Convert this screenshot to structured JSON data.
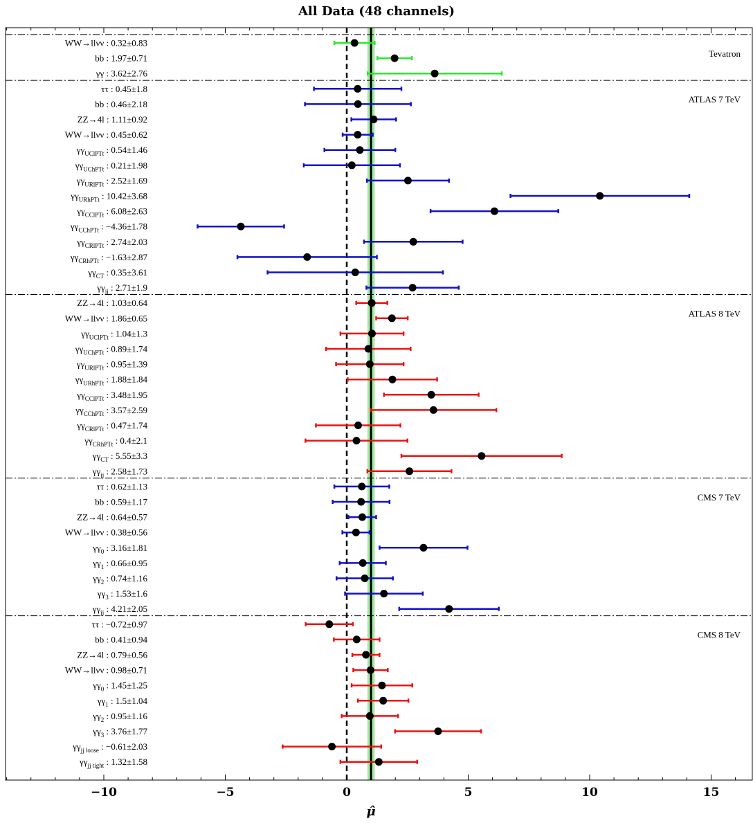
{
  "chart_data": {
    "type": "scatter",
    "title": "All Data (48 channels)",
    "xlabel": "μ̂",
    "xlim": [
      -14,
      16.5
    ],
    "xticks": [
      -10,
      -5,
      0,
      5,
      10,
      15
    ],
    "tick_labels": [
      "−10",
      "−5",
      "0",
      "5",
      "10",
      "15"
    ],
    "reference_lines": {
      "zero": 0,
      "combined": 1.0,
      "combined_band": [
        0.85,
        1.15
      ]
    },
    "colors": {
      "tevatron": "#22ee22",
      "seven_tev": "#1111cc",
      "eight_tev": "#ee1111",
      "band": "#a6e8a6"
    },
    "groups": [
      {
        "name": "Tevatron",
        "color": "#22ee22",
        "channels": [
          {
            "label": "WW→llνν : 0.32±0.83",
            "base": "WW→llνν",
            "sub": "",
            "rest": " : 0.32±0.83",
            "value": 0.32,
            "error": 0.83
          },
          {
            "label": "bb : 1.97±0.71",
            "base": "bb",
            "sub": "",
            "rest": " : 1.97±0.71",
            "value": 1.97,
            "error": 0.71
          },
          {
            "label": "γγ : 3.62±2.76",
            "base": "γγ",
            "sub": "",
            "rest": " : 3.62±2.76",
            "value": 3.62,
            "error": 2.76
          }
        ]
      },
      {
        "name": "ATLAS 7 TeV",
        "color": "#1111cc",
        "channels": [
          {
            "label": "ττ : 0.45±1.8",
            "base": "ττ",
            "sub": "",
            "rest": " : 0.45±1.8",
            "value": 0.45,
            "error": 1.8
          },
          {
            "label": "bb : 0.46±2.18",
            "base": "bb",
            "sub": "",
            "rest": " : 0.46±2.18",
            "value": 0.46,
            "error": 2.18
          },
          {
            "label": "ZZ→4l : 1.11±0.92",
            "base": "ZZ→4l",
            "sub": "",
            "rest": " : 1.11±0.92",
            "value": 1.11,
            "error": 0.92
          },
          {
            "label": "WW→llνν : 0.45±0.62",
            "base": "WW→llνν",
            "sub": "",
            "rest": " : 0.45±0.62",
            "value": 0.45,
            "error": 0.62
          },
          {
            "label": "γγUClPTt : 0.54±1.46",
            "base": "γγ",
            "sub": "UClPTt",
            "rest": " : 0.54±1.46",
            "value": 0.54,
            "error": 1.46
          },
          {
            "label": "γγUChPTt : 0.21±1.98",
            "base": "γγ",
            "sub": "UChPTt",
            "rest": " : 0.21±1.98",
            "value": 0.21,
            "error": 1.98
          },
          {
            "label": "γγURlPTt : 2.52±1.69",
            "base": "γγ",
            "sub": "URlPTt",
            "rest": " : 2.52±1.69",
            "value": 2.52,
            "error": 1.69
          },
          {
            "label": "γγURhPTt : 10.42±3.68",
            "base": "γγ",
            "sub": "URhPTt",
            "rest": " : 10.42±3.68",
            "value": 10.42,
            "error": 3.68
          },
          {
            "label": "γγCClPTt : 6.08±2.63",
            "base": "γγ",
            "sub": "CClPTt",
            "rest": " : 6.08±2.63",
            "value": 6.08,
            "error": 2.63
          },
          {
            "label": "γγCChPTt : −4.36±1.78",
            "base": "γγ",
            "sub": "CChPTt",
            "rest": " : −4.36±1.78",
            "value": -4.36,
            "error": 1.78
          },
          {
            "label": "γγCRlPTt : 2.74±2.03",
            "base": "γγ",
            "sub": "CRlPTt",
            "rest": " : 2.74±2.03",
            "value": 2.74,
            "error": 2.03
          },
          {
            "label": "γγCRhPTt : −1.63±2.87",
            "base": "γγ",
            "sub": "CRhPTt",
            "rest": " : −1.63±2.87",
            "value": -1.63,
            "error": 2.87
          },
          {
            "label": "γγCT : 0.35±3.61",
            "base": "γγ",
            "sub": "CT",
            "rest": " : 0.35±3.61",
            "value": 0.35,
            "error": 3.61
          },
          {
            "label": "γγjj : 2.71±1.9",
            "base": "γγ",
            "sub": "jj",
            "rest": " : 2.71±1.9",
            "value": 2.71,
            "error": 1.9
          }
        ]
      },
      {
        "name": "ATLAS 8 TeV",
        "color": "#ee1111",
        "channels": [
          {
            "label": "ZZ→4l : 1.03±0.64",
            "base": "ZZ→4l",
            "sub": "",
            "rest": " : 1.03±0.64",
            "value": 1.03,
            "error": 0.64
          },
          {
            "label": "WW→llνν : 1.86±0.65",
            "base": "WW→llνν",
            "sub": "",
            "rest": " : 1.86±0.65",
            "value": 1.86,
            "error": 0.65
          },
          {
            "label": "γγUClPTt : 1.04±1.3",
            "base": "γγ",
            "sub": "UClPTt",
            "rest": " : 1.04±1.3",
            "value": 1.04,
            "error": 1.3
          },
          {
            "label": "γγUChPTt : 0.89±1.74",
            "base": "γγ",
            "sub": "UChPTt",
            "rest": " : 0.89±1.74",
            "value": 0.89,
            "error": 1.74
          },
          {
            "label": "γγURlPTt : 0.95±1.39",
            "base": "γγ",
            "sub": "URlPTt",
            "rest": " : 0.95±1.39",
            "value": 0.95,
            "error": 1.39
          },
          {
            "label": "γγURhPTt : 1.88±1.84",
            "base": "γγ",
            "sub": "URhPTt",
            "rest": " : 1.88±1.84",
            "value": 1.88,
            "error": 1.84
          },
          {
            "label": "γγCClPTt : 3.48±1.95",
            "base": "γγ",
            "sub": "CClPTt",
            "rest": " : 3.48±1.95",
            "value": 3.48,
            "error": 1.95
          },
          {
            "label": "γγCChPTt : 3.57±2.59",
            "base": "γγ",
            "sub": "CChPTt",
            "rest": " : 3.57±2.59",
            "value": 3.57,
            "error": 2.59
          },
          {
            "label": "γγCRlPTt : 0.47±1.74",
            "base": "γγ",
            "sub": "CRlPTt",
            "rest": " : 0.47±1.74",
            "value": 0.47,
            "error": 1.74
          },
          {
            "label": "γγCRhPTt : 0.4±2.1",
            "base": "γγ",
            "sub": "CRhPTt",
            "rest": " : 0.4±2.1",
            "value": 0.4,
            "error": 2.1
          },
          {
            "label": "γγCT : 5.55±3.3",
            "base": "γγ",
            "sub": "CT",
            "rest": " : 5.55±3.3",
            "value": 5.55,
            "error": 3.3
          },
          {
            "label": "γγjj : 2.58±1.73",
            "base": "γγ",
            "sub": "jj",
            "rest": " : 2.58±1.73",
            "value": 2.58,
            "error": 1.73
          }
        ]
      },
      {
        "name": "CMS 7 TeV",
        "color": "#1111cc",
        "channels": [
          {
            "label": "ττ : 0.62±1.13",
            "base": "ττ",
            "sub": "",
            "rest": " : 0.62±1.13",
            "value": 0.62,
            "error": 1.13
          },
          {
            "label": "bb : 0.59±1.17",
            "base": "bb",
            "sub": "",
            "rest": " : 0.59±1.17",
            "value": 0.59,
            "error": 1.17
          },
          {
            "label": "ZZ→4l : 0.64±0.57",
            "base": "ZZ→4l",
            "sub": "",
            "rest": " : 0.64±0.57",
            "value": 0.64,
            "error": 0.57
          },
          {
            "label": "WW→llνν : 0.38±0.56",
            "base": "WW→llνν",
            "sub": "",
            "rest": " : 0.38±0.56",
            "value": 0.38,
            "error": 0.56
          },
          {
            "label": "γγ0 : 3.16±1.81",
            "base": "γγ",
            "sub": "0",
            "rest": " : 3.16±1.81",
            "value": 3.16,
            "error": 1.81
          },
          {
            "label": "γγ1 : 0.66±0.95",
            "base": "γγ",
            "sub": "1",
            "rest": " : 0.66±0.95",
            "value": 0.66,
            "error": 0.95
          },
          {
            "label": "γγ2 : 0.74±1.16",
            "base": "γγ",
            "sub": "2",
            "rest": " : 0.74±1.16",
            "value": 0.74,
            "error": 1.16
          },
          {
            "label": "γγ3 : 1.53±1.6",
            "base": "γγ",
            "sub": "3",
            "rest": " : 1.53±1.6",
            "value": 1.53,
            "error": 1.6
          },
          {
            "label": "γγjj : 4.21±2.05",
            "base": "γγ",
            "sub": "jj",
            "rest": " : 4.21±2.05",
            "value": 4.21,
            "error": 2.05
          }
        ]
      },
      {
        "name": "CMS 8 TeV",
        "color": "#ee1111",
        "channels": [
          {
            "label": "ττ : −0.72±0.97",
            "base": "ττ",
            "sub": "",
            "rest": " : −0.72±0.97",
            "value": -0.72,
            "error": 0.97
          },
          {
            "label": "bb : 0.41±0.94",
            "base": "bb",
            "sub": "",
            "rest": " : 0.41±0.94",
            "value": 0.41,
            "error": 0.94
          },
          {
            "label": "ZZ→4l : 0.79±0.56",
            "base": "ZZ→4l",
            "sub": "",
            "rest": " : 0.79±0.56",
            "value": 0.79,
            "error": 0.56
          },
          {
            "label": "WW→llνν : 0.98±0.71",
            "base": "WW→llνν",
            "sub": "",
            "rest": " : 0.98±0.71",
            "value": 0.98,
            "error": 0.71
          },
          {
            "label": "γγ0 : 1.45±1.25",
            "base": "γγ",
            "sub": "0",
            "rest": " : 1.45±1.25",
            "value": 1.45,
            "error": 1.25
          },
          {
            "label": "γγ1 : 1.5±1.04",
            "base": "γγ",
            "sub": "1",
            "rest": " : 1.5±1.04",
            "value": 1.5,
            "error": 1.04
          },
          {
            "label": "γγ2 : 0.95±1.16",
            "base": "γγ",
            "sub": "2",
            "rest": " : 0.95±1.16",
            "value": 0.95,
            "error": 1.16
          },
          {
            "label": "γγ3 : 3.76±1.77",
            "base": "γγ",
            "sub": "3",
            "rest": " : 3.76±1.77",
            "value": 3.76,
            "error": 1.77
          },
          {
            "label": "γγjj loose : −0.61±2.03",
            "base": "γγ",
            "sub": "jj loose",
            "rest": " : −0.61±2.03",
            "value": -0.61,
            "error": 2.03
          },
          {
            "label": "γγjj tight : 1.32±1.58",
            "base": "γγ",
            "sub": "jj tight",
            "rest": " : 1.32±1.58",
            "value": 1.32,
            "error": 1.58
          }
        ]
      }
    ]
  }
}
